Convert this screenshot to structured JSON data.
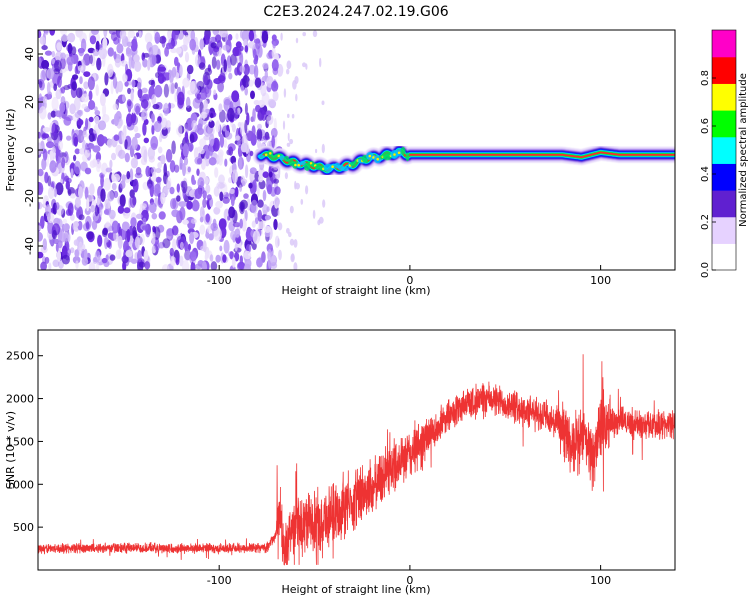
{
  "title": "C2E3.2024.247.02.19.G06",
  "chart_data": [
    {
      "type": "heatmap",
      "xlabel": "Height of straight line (km)",
      "ylabel": "Frequency (Hz)",
      "xlim": [
        -195,
        139
      ],
      "ylim": [
        -50,
        50
      ],
      "xticks": [
        -100,
        0,
        100
      ],
      "yticks": [
        -40,
        -20,
        0,
        20,
        40
      ],
      "colorbar": {
        "label": "Normalized spectral amplitude",
        "range": [
          0,
          1
        ],
        "ticks": [
          0.0,
          0.2,
          0.4,
          0.6,
          0.8
        ],
        "tick_labels": [
          "0.0",
          "0.2",
          "0.4",
          "0.6",
          "0.8"
        ],
        "colormap": [
          "#ffffff",
          "#e6d2ff",
          "#6020d0",
          "#0000ff",
          "#00ffff",
          "#00ff00",
          "#ffff00",
          "#ff0000",
          "#ff00c8"
        ]
      },
      "noise_region": [
        -195,
        -68
      ],
      "signal_ridge": {
        "x": [
          -78,
          -70,
          -62,
          -55,
          -48,
          -42,
          -36,
          -30,
          -24,
          -18,
          -12,
          -6,
          0,
          10,
          20,
          40,
          60,
          80,
          90,
          100,
          110,
          139
        ],
        "y": [
          -2,
          -3,
          -5,
          -6,
          -7,
          -8,
          -7,
          -6,
          -4,
          -3,
          -2,
          -1,
          -2,
          -2,
          -2,
          -2,
          -2,
          -2,
          -3,
          -1,
          -2,
          -2
        ]
      }
    },
    {
      "type": "line",
      "xlabel": "Height of straight line (km)",
      "ylabel": "SNR (10 * v/v)",
      "xlim": [
        -195,
        139
      ],
      "ylim": [
        0,
        2800
      ],
      "xticks": [
        -100,
        0,
        100
      ],
      "yticks": [
        500,
        1000,
        1500,
        2000,
        2500
      ],
      "line_color": "#ee3333",
      "series": [
        {
          "x": [
            -195,
            -150,
            -100,
            -75,
            -70,
            -68,
            -66,
            -64,
            -60,
            -50,
            -40,
            -30,
            -20,
            -10,
            0,
            10,
            20,
            30,
            40,
            50,
            60,
            70,
            80,
            86,
            90,
            96,
            100,
            110,
            120,
            139
          ],
          "y": [
            250,
            260,
            250,
            260,
            420,
            700,
            150,
            400,
            550,
            550,
            650,
            800,
            950,
            1200,
            1350,
            1550,
            1800,
            1950,
            2000,
            1950,
            1850,
            1800,
            1650,
            1350,
            1600,
            1300,
            1700,
            1750,
            1700,
            1700
          ]
        }
      ]
    }
  ]
}
